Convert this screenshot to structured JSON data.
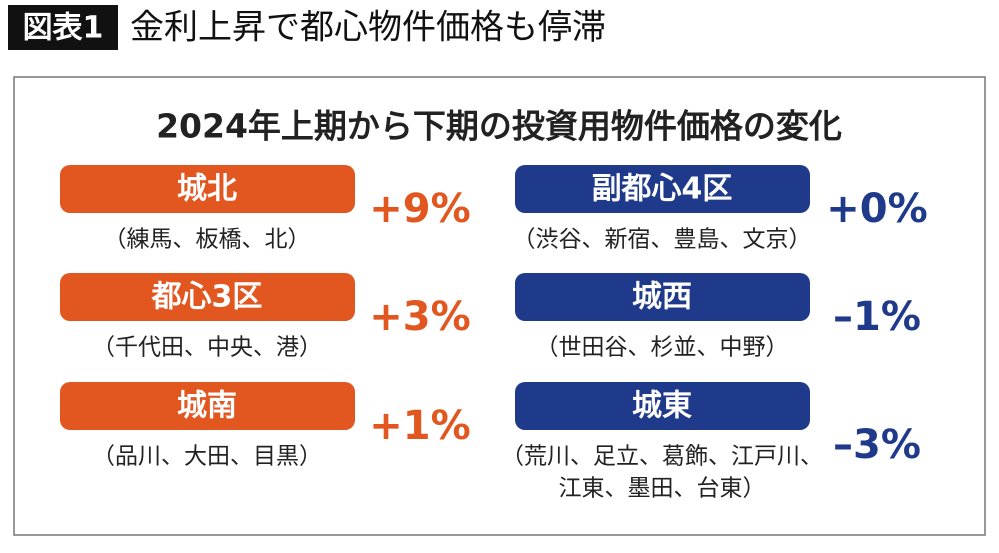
{
  "header": {
    "label": "図表1",
    "title": "金利上昇で都心物件価格も停滞"
  },
  "panel": {
    "title": "2024年上期から下期の投資用物件価格の変化",
    "left": [
      {
        "name": "城北",
        "wards": [
          "（練馬、板橋、北）"
        ],
        "change": "+9%"
      },
      {
        "name": "都心3区",
        "wards": [
          "（千代田、中央、港）"
        ],
        "change": "+3%"
      },
      {
        "name": "城南",
        "wards": [
          "（品川、大田、目黒）"
        ],
        "change": "+1%"
      }
    ],
    "right": [
      {
        "name": "副都心4区",
        "wards": [
          "（渋谷、新宿、豊島、文京）"
        ],
        "change": "+0%"
      },
      {
        "name": "城西",
        "wards": [
          "（世田谷、杉並、中野）"
        ],
        "change": "–1%"
      },
      {
        "name": "城東",
        "wards": [
          "（荒川、足立、葛飾、江戸川、",
          "江東、墨田、台東）"
        ],
        "change": "–3%"
      }
    ]
  }
}
